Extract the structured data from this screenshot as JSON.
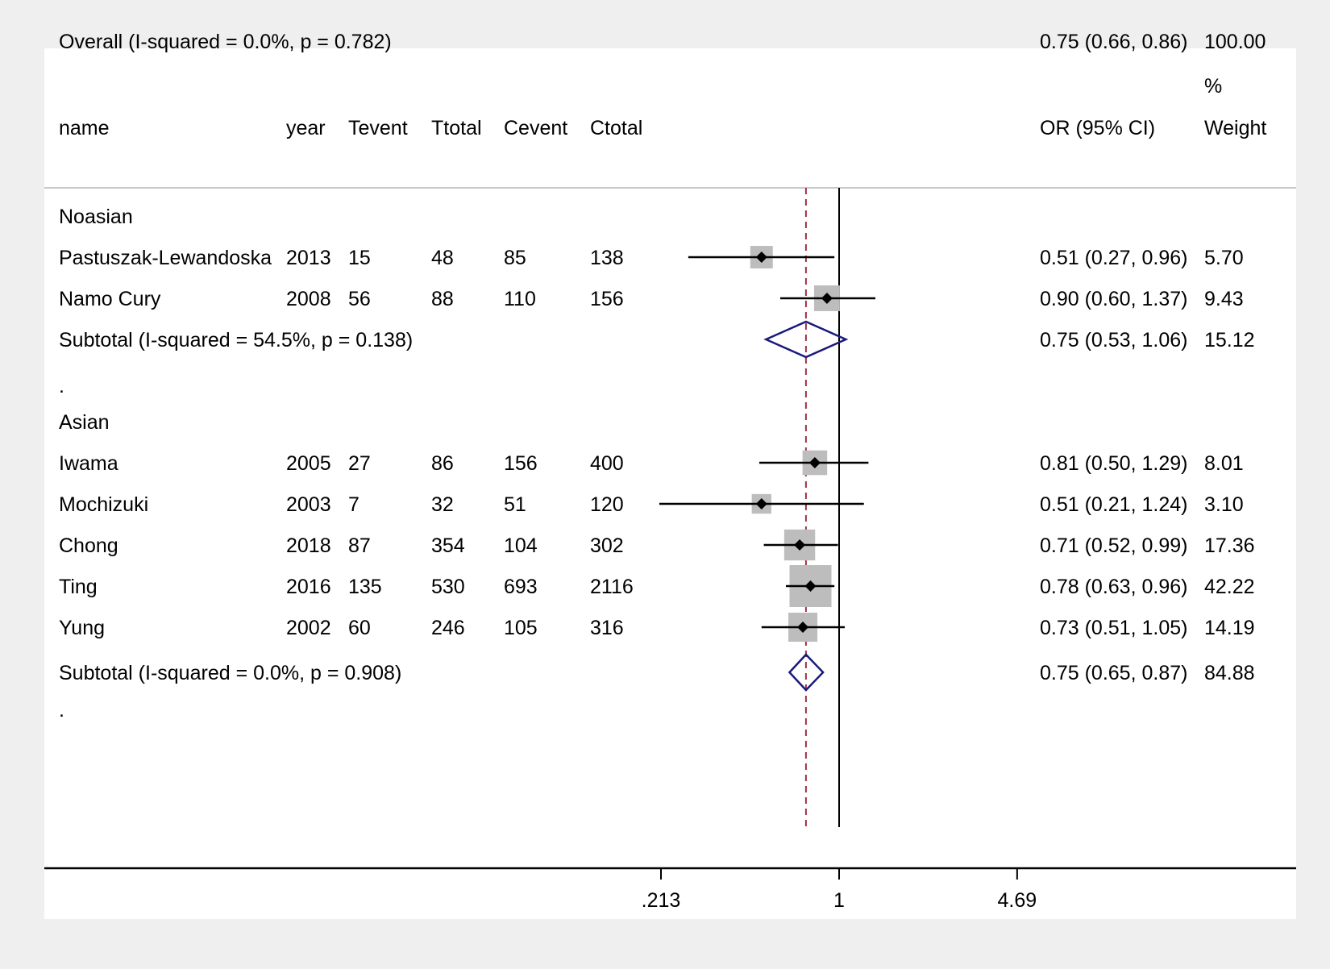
{
  "headers": {
    "name": "name",
    "year": "year",
    "tevent": "Tevent",
    "ttotal": "Ttotal",
    "cevent": "Cevent",
    "ctotal": "Ctotal",
    "or": "OR (95% CI)",
    "weight_top": "%",
    "weight": "Weight"
  },
  "chart_data": {
    "type": "forest",
    "x_scale": "log",
    "x_ticks": [
      {
        "value": 0.213,
        "label": ".213"
      },
      {
        "value": 1,
        "label": "1"
      },
      {
        "value": 4.69,
        "label": "4.69"
      }
    ],
    "null_line": 1,
    "overall_line": 0.75,
    "colors": {
      "ci_line": "#000000",
      "weight_box": "#bdbdbd",
      "point": "#000000",
      "diamond": "#1a1a7a",
      "overall_line": "#a03040",
      "rule": "#c8c8c8"
    },
    "rows": [
      {
        "kind": "group",
        "label": "Noasian"
      },
      {
        "kind": "study",
        "name": "Pastuszak-Lewandoska",
        "year": "2013",
        "tevent": "15",
        "ttotal": "48",
        "cevent": "85",
        "ctotal": "138",
        "or": 0.51,
        "lo": 0.27,
        "hi": 0.96,
        "ci_text": "0.51 (0.27, 0.96)",
        "weight": 5.7,
        "weight_text": "5.70"
      },
      {
        "kind": "study",
        "name": "Namo Cury",
        "year": "2008",
        "tevent": "56",
        "ttotal": "88",
        "cevent": "110",
        "ctotal": "156",
        "or": 0.9,
        "lo": 0.6,
        "hi": 1.37,
        "ci_text": "0.90 (0.60, 1.37)",
        "weight": 9.43,
        "weight_text": "9.43"
      },
      {
        "kind": "subtotal",
        "label": "Subtotal  (I-squared = 54.5%, p = 0.138)",
        "or": 0.75,
        "lo": 0.53,
        "hi": 1.06,
        "ci_text": "0.75 (0.53, 1.06)",
        "weight_text": "15.12"
      },
      {
        "kind": "spacer",
        "label": "."
      },
      {
        "kind": "group",
        "label": "Asian"
      },
      {
        "kind": "study",
        "name": "Iwama",
        "year": "2005",
        "tevent": "27",
        "ttotal": "86",
        "cevent": "156",
        "ctotal": "400",
        "or": 0.81,
        "lo": 0.5,
        "hi": 1.29,
        "ci_text": "0.81 (0.50, 1.29)",
        "weight": 8.01,
        "weight_text": "8.01"
      },
      {
        "kind": "study",
        "name": "Mochizuki",
        "year": "2003",
        "tevent": "7",
        "ttotal": "32",
        "cevent": "51",
        "ctotal": "120",
        "or": 0.51,
        "lo": 0.21,
        "hi": 1.24,
        "ci_text": "0.51 (0.21, 1.24)",
        "weight": 3.1,
        "weight_text": "3.10"
      },
      {
        "kind": "study",
        "name": "Chong",
        "year": "2018",
        "tevent": "87",
        "ttotal": "354",
        "cevent": "104",
        "ctotal": "302",
        "or": 0.71,
        "lo": 0.52,
        "hi": 0.99,
        "ci_text": "0.71 (0.52, 0.99)",
        "weight": 17.36,
        "weight_text": "17.36"
      },
      {
        "kind": "study",
        "name": "Ting",
        "year": "2016",
        "tevent": "135",
        "ttotal": "530",
        "cevent": "693",
        "ctotal": "2116",
        "or": 0.78,
        "lo": 0.63,
        "hi": 0.96,
        "ci_text": "0.78 (0.63, 0.96)",
        "weight": 42.22,
        "weight_text": "42.22"
      },
      {
        "kind": "study",
        "name": "Yung",
        "year": "2002",
        "tevent": "60",
        "ttotal": "246",
        "cevent": "105",
        "ctotal": "316",
        "or": 0.73,
        "lo": 0.51,
        "hi": 1.05,
        "ci_text": "0.73 (0.51, 1.05)",
        "weight": 14.19,
        "weight_text": "14.19"
      },
      {
        "kind": "subtotal",
        "label": "Subtotal  (I-squared = 0.0%, p = 0.908)",
        "or": 0.75,
        "lo": 0.65,
        "hi": 0.87,
        "ci_text": "0.75 (0.65, 0.87)",
        "weight_text": "84.88"
      },
      {
        "kind": "spacer",
        "label": "."
      },
      {
        "kind": "overall",
        "label": "Overall  (I-squared = 0.0%, p = 0.782)",
        "or": 0.75,
        "lo": 0.66,
        "hi": 0.86,
        "ci_text": "0.75 (0.66, 0.86)",
        "weight_text": "100.00"
      }
    ]
  }
}
